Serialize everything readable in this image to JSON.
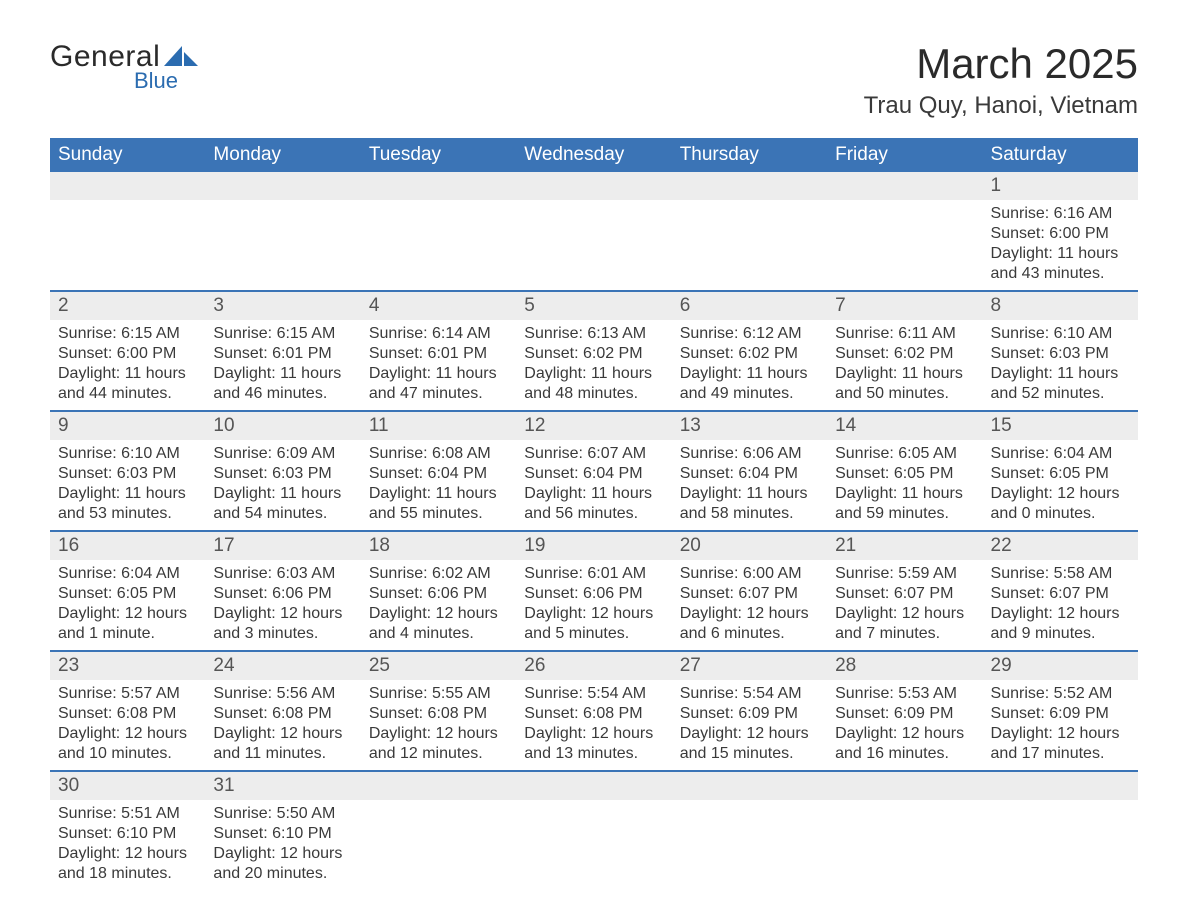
{
  "logo": {
    "main": "General",
    "sub": "Blue",
    "shape_color": "#2b6cb0"
  },
  "title": "March 2025",
  "location": "Trau Quy, Hanoi, Vietnam",
  "colors": {
    "header_bg": "#3b74b6",
    "header_text": "#ffffff",
    "daynum_bg": "#ededed",
    "body_text": "#3a3a3a",
    "rule": "#3b74b6"
  },
  "fonts": {
    "title_pt": 42,
    "location_pt": 24,
    "weekday_pt": 19,
    "daynum_pt": 19,
    "body_pt": 16
  },
  "weekdays": [
    "Sunday",
    "Monday",
    "Tuesday",
    "Wednesday",
    "Thursday",
    "Friday",
    "Saturday"
  ],
  "weeks": [
    [
      null,
      null,
      null,
      null,
      null,
      null,
      {
        "n": "1",
        "sunrise": "6:16 AM",
        "sunset": "6:00 PM",
        "daylight": "11 hours and 43 minutes."
      }
    ],
    [
      {
        "n": "2",
        "sunrise": "6:15 AM",
        "sunset": "6:00 PM",
        "daylight": "11 hours and 44 minutes."
      },
      {
        "n": "3",
        "sunrise": "6:15 AM",
        "sunset": "6:01 PM",
        "daylight": "11 hours and 46 minutes."
      },
      {
        "n": "4",
        "sunrise": "6:14 AM",
        "sunset": "6:01 PM",
        "daylight": "11 hours and 47 minutes."
      },
      {
        "n": "5",
        "sunrise": "6:13 AM",
        "sunset": "6:02 PM",
        "daylight": "11 hours and 48 minutes."
      },
      {
        "n": "6",
        "sunrise": "6:12 AM",
        "sunset": "6:02 PM",
        "daylight": "11 hours and 49 minutes."
      },
      {
        "n": "7",
        "sunrise": "6:11 AM",
        "sunset": "6:02 PM",
        "daylight": "11 hours and 50 minutes."
      },
      {
        "n": "8",
        "sunrise": "6:10 AM",
        "sunset": "6:03 PM",
        "daylight": "11 hours and 52 minutes."
      }
    ],
    [
      {
        "n": "9",
        "sunrise": "6:10 AM",
        "sunset": "6:03 PM",
        "daylight": "11 hours and 53 minutes."
      },
      {
        "n": "10",
        "sunrise": "6:09 AM",
        "sunset": "6:03 PM",
        "daylight": "11 hours and 54 minutes."
      },
      {
        "n": "11",
        "sunrise": "6:08 AM",
        "sunset": "6:04 PM",
        "daylight": "11 hours and 55 minutes."
      },
      {
        "n": "12",
        "sunrise": "6:07 AM",
        "sunset": "6:04 PM",
        "daylight": "11 hours and 56 minutes."
      },
      {
        "n": "13",
        "sunrise": "6:06 AM",
        "sunset": "6:04 PM",
        "daylight": "11 hours and 58 minutes."
      },
      {
        "n": "14",
        "sunrise": "6:05 AM",
        "sunset": "6:05 PM",
        "daylight": "11 hours and 59 minutes."
      },
      {
        "n": "15",
        "sunrise": "6:04 AM",
        "sunset": "6:05 PM",
        "daylight": "12 hours and 0 minutes."
      }
    ],
    [
      {
        "n": "16",
        "sunrise": "6:04 AM",
        "sunset": "6:05 PM",
        "daylight": "12 hours and 1 minute."
      },
      {
        "n": "17",
        "sunrise": "6:03 AM",
        "sunset": "6:06 PM",
        "daylight": "12 hours and 3 minutes."
      },
      {
        "n": "18",
        "sunrise": "6:02 AM",
        "sunset": "6:06 PM",
        "daylight": "12 hours and 4 minutes."
      },
      {
        "n": "19",
        "sunrise": "6:01 AM",
        "sunset": "6:06 PM",
        "daylight": "12 hours and 5 minutes."
      },
      {
        "n": "20",
        "sunrise": "6:00 AM",
        "sunset": "6:07 PM",
        "daylight": "12 hours and 6 minutes."
      },
      {
        "n": "21",
        "sunrise": "5:59 AM",
        "sunset": "6:07 PM",
        "daylight": "12 hours and 7 minutes."
      },
      {
        "n": "22",
        "sunrise": "5:58 AM",
        "sunset": "6:07 PM",
        "daylight": "12 hours and 9 minutes."
      }
    ],
    [
      {
        "n": "23",
        "sunrise": "5:57 AM",
        "sunset": "6:08 PM",
        "daylight": "12 hours and 10 minutes."
      },
      {
        "n": "24",
        "sunrise": "5:56 AM",
        "sunset": "6:08 PM",
        "daylight": "12 hours and 11 minutes."
      },
      {
        "n": "25",
        "sunrise": "5:55 AM",
        "sunset": "6:08 PM",
        "daylight": "12 hours and 12 minutes."
      },
      {
        "n": "26",
        "sunrise": "5:54 AM",
        "sunset": "6:08 PM",
        "daylight": "12 hours and 13 minutes."
      },
      {
        "n": "27",
        "sunrise": "5:54 AM",
        "sunset": "6:09 PM",
        "daylight": "12 hours and 15 minutes."
      },
      {
        "n": "28",
        "sunrise": "5:53 AM",
        "sunset": "6:09 PM",
        "daylight": "12 hours and 16 minutes."
      },
      {
        "n": "29",
        "sunrise": "5:52 AM",
        "sunset": "6:09 PM",
        "daylight": "12 hours and 17 minutes."
      }
    ],
    [
      {
        "n": "30",
        "sunrise": "5:51 AM",
        "sunset": "6:10 PM",
        "daylight": "12 hours and 18 minutes."
      },
      {
        "n": "31",
        "sunrise": "5:50 AM",
        "sunset": "6:10 PM",
        "daylight": "12 hours and 20 minutes."
      },
      null,
      null,
      null,
      null,
      null
    ]
  ],
  "labels": {
    "sunrise": "Sunrise: ",
    "sunset": "Sunset: ",
    "daylight": "Daylight: "
  }
}
